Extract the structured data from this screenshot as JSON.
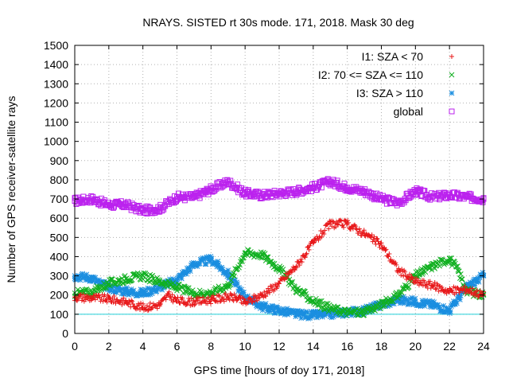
{
  "chart_data": {
    "type": "scatter",
    "title": "NRAYS. SISTED rt 30s mode. 171, 2018. Mask 30 deg",
    "xlabel": "GPS time [hours of doy 171, 2018]",
    "ylabel": "Number of GPS receiver-satellite rays",
    "xlim": [
      0,
      24
    ],
    "ylim": [
      0,
      1500
    ],
    "xticks": [
      0,
      2,
      4,
      6,
      8,
      10,
      12,
      14,
      16,
      18,
      20,
      22,
      24
    ],
    "yticks": [
      0,
      100,
      200,
      300,
      400,
      500,
      600,
      700,
      800,
      900,
      1000,
      1100,
      1200,
      1300,
      1400,
      1500
    ],
    "grid": true,
    "legend_position": "top-right",
    "threshold_line": {
      "y": 100,
      "color": "#22cfd8"
    },
    "series": [
      {
        "name": "I1: SZA < 70",
        "symbol": "plus",
        "color": "#e8181a",
        "points": [
          [
            0,
            190
          ],
          [
            1,
            185
          ],
          [
            2,
            180
          ],
          [
            3,
            165
          ],
          [
            4,
            135
          ],
          [
            5,
            150
          ],
          [
            5.5,
            200
          ],
          [
            6,
            170
          ],
          [
            7,
            165
          ],
          [
            8,
            175
          ],
          [
            9,
            190
          ],
          [
            9.5,
            185
          ],
          [
            10,
            160
          ],
          [
            11,
            200
          ],
          [
            12,
            260
          ],
          [
            13,
            350
          ],
          [
            14,
            470
          ],
          [
            15,
            570
          ],
          [
            16,
            570
          ],
          [
            17,
            520
          ],
          [
            18,
            460
          ],
          [
            19,
            330
          ],
          [
            20,
            270
          ],
          [
            21,
            250
          ],
          [
            22,
            220
          ],
          [
            23,
            230
          ],
          [
            24,
            200
          ]
        ]
      },
      {
        "name": "I2: 70 <= SZA <= 110",
        "symbol": "cross",
        "color": "#10b020",
        "points": [
          [
            0,
            210
          ],
          [
            1,
            215
          ],
          [
            2,
            260
          ],
          [
            3,
            285
          ],
          [
            4,
            300
          ],
          [
            5,
            270
          ],
          [
            6,
            240
          ],
          [
            7,
            210
          ],
          [
            8,
            210
          ],
          [
            9,
            250
          ],
          [
            10,
            420
          ],
          [
            11,
            410
          ],
          [
            12,
            340
          ],
          [
            13,
            230
          ],
          [
            14,
            170
          ],
          [
            15,
            130
          ],
          [
            16,
            110
          ],
          [
            17,
            110
          ],
          [
            18,
            150
          ],
          [
            19,
            200
          ],
          [
            20,
            300
          ],
          [
            21,
            350
          ],
          [
            22,
            390
          ],
          [
            22.5,
            330
          ],
          [
            23,
            220
          ],
          [
            24,
            200
          ]
        ]
      },
      {
        "name": "I3: SZA > 110",
        "symbol": "star",
        "color": "#1a8ee0",
        "points": [
          [
            0,
            300
          ],
          [
            1,
            290
          ],
          [
            1.5,
            260
          ],
          [
            2,
            240
          ],
          [
            3,
            220
          ],
          [
            4,
            210
          ],
          [
            5,
            240
          ],
          [
            6,
            280
          ],
          [
            7,
            360
          ],
          [
            8,
            385
          ],
          [
            9,
            310
          ],
          [
            10,
            190
          ],
          [
            11,
            140
          ],
          [
            12,
            120
          ],
          [
            13,
            100
          ],
          [
            14,
            95
          ],
          [
            15,
            100
          ],
          [
            16,
            110
          ],
          [
            17,
            120
          ],
          [
            18,
            150
          ],
          [
            19,
            175
          ],
          [
            20,
            165
          ],
          [
            21,
            150
          ],
          [
            22,
            120
          ],
          [
            23,
            240
          ],
          [
            24,
            300
          ]
        ]
      },
      {
        "name": "global",
        "symbol": "square",
        "color": "#bb22ee",
        "points": [
          [
            0,
            690
          ],
          [
            1,
            700
          ],
          [
            2,
            670
          ],
          [
            3,
            670
          ],
          [
            4,
            640
          ],
          [
            5,
            650
          ],
          [
            6,
            710
          ],
          [
            7,
            710
          ],
          [
            8,
            750
          ],
          [
            9,
            790
          ],
          [
            10,
            730
          ],
          [
            11,
            720
          ],
          [
            12,
            730
          ],
          [
            13,
            740
          ],
          [
            14,
            760
          ],
          [
            15,
            790
          ],
          [
            16,
            760
          ],
          [
            17,
            740
          ],
          [
            18,
            700
          ],
          [
            19,
            680
          ],
          [
            20,
            740
          ],
          [
            21,
            710
          ],
          [
            22,
            720
          ],
          [
            23,
            710
          ],
          [
            24,
            700
          ]
        ]
      }
    ]
  }
}
